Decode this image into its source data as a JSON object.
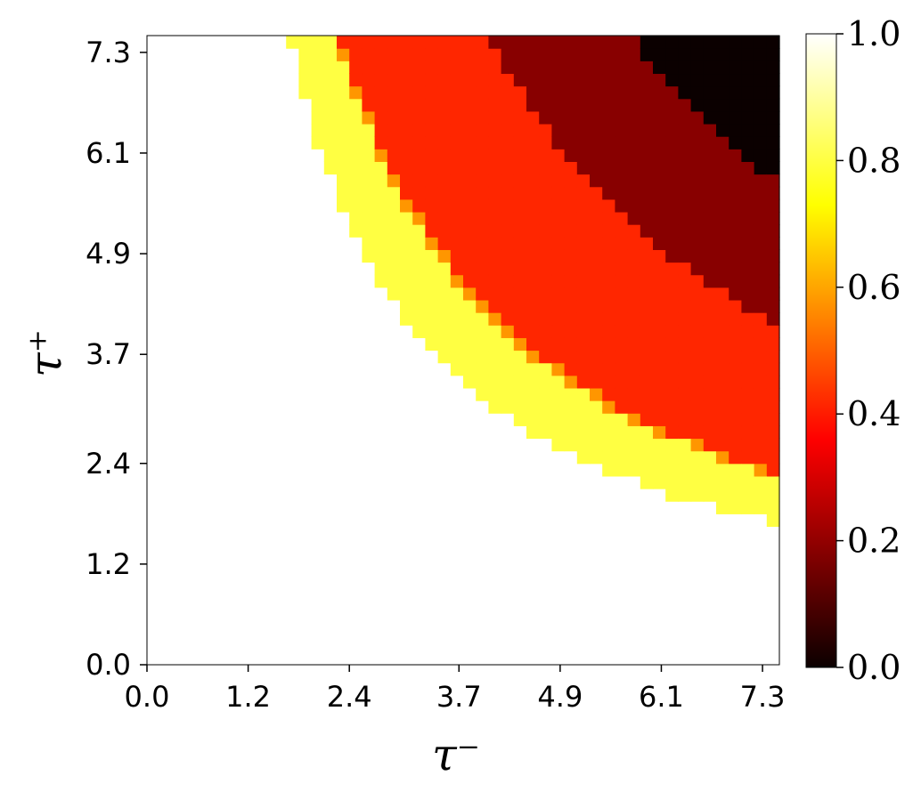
{
  "chart_data": {
    "type": "heatmap",
    "title": "",
    "xlabel": "τ⁻",
    "ylabel": "τ⁺",
    "x_ticks": [
      "0.0",
      "1.2",
      "2.4",
      "3.7",
      "4.9",
      "6.1",
      "7.3"
    ],
    "y_ticks": [
      "0.0",
      "1.2",
      "2.4",
      "3.7",
      "4.9",
      "6.1",
      "7.3"
    ],
    "xlim": [
      0.0,
      7.5
    ],
    "ylim": [
      0.0,
      7.5
    ],
    "grid": false,
    "colormap": "hot",
    "colorbar": {
      "min": 0.0,
      "max": 1.0,
      "ticks": [
        "0.0",
        "0.2",
        "0.4",
        "0.6",
        "0.8",
        "1.0"
      ]
    },
    "bands": [
      {
        "value": 0.0,
        "inner_radius": 6.55,
        "outer_radius": null
      },
      {
        "value": 0.18,
        "inner_radius": 5.5,
        "outer_radius": 6.55
      },
      {
        "value": 0.42,
        "inner_radius": 4.15,
        "outer_radius": 5.5
      },
      {
        "value": 0.58,
        "inner_radius": 4.1,
        "outer_radius": 4.45
      },
      {
        "value": 0.8,
        "inner_radius": 3.55,
        "outer_radius": 4.15
      },
      {
        "value": 1.0,
        "inner_radius": null,
        "outer_radius": 3.55
      }
    ]
  }
}
